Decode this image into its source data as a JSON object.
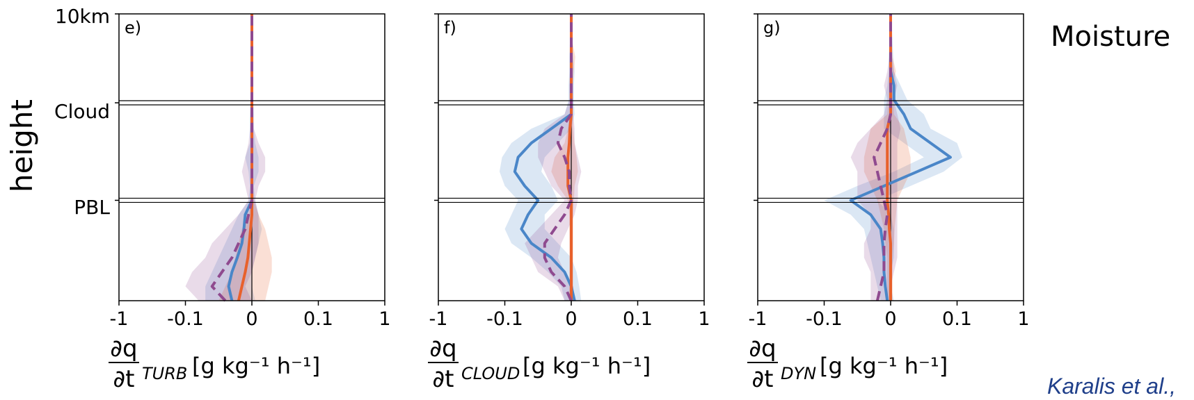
{
  "figure": {
    "side_title": "Moisture",
    "citation": "Karalis et al.,",
    "ylabel": "height",
    "ytick_labels": [
      "10km",
      "Cloud",
      "PBL"
    ]
  },
  "chart_data": [
    {
      "type": "line",
      "panel_label": "e)",
      "xlabel_num": "∂q",
      "xlabel_den": "∂t",
      "xlabel_sub": "TURB",
      "xlabel_units": "[g kg⁻¹ h⁻¹]",
      "xtick_labels": [
        "-1",
        "-0.1",
        "0",
        "0.1",
        "1"
      ],
      "xticks": [
        -1,
        -0.1,
        0,
        0.1,
        1
      ],
      "xscale": "symlog",
      "y_levels": [
        0.0,
        0.05,
        0.1,
        0.15,
        0.2,
        0.25,
        0.3,
        0.35,
        0.4,
        0.45,
        0.5,
        0.55,
        0.6,
        0.65,
        0.7,
        0.75,
        0.8,
        0.85,
        0.9,
        0.95,
        1.0
      ],
      "hlines": [
        0.35,
        0.69
      ],
      "series": [
        {
          "color": "#4a86c8",
          "dash": false,
          "values": [
            -0.03,
            -0.035,
            -0.03,
            -0.022,
            -0.015,
            -0.012,
            -0.01,
            0,
            0,
            0,
            0,
            0,
            0,
            0,
            0,
            0,
            0,
            0,
            0,
            0,
            0
          ],
          "band_lo": [
            -0.07,
            -0.07,
            -0.06,
            -0.05,
            -0.04,
            -0.03,
            -0.02,
            -0.005,
            -0.003,
            -0.005,
            -0.01,
            -0.003,
            -0.003,
            -0.003,
            -0.002,
            -0.002,
            -0.001,
            -0.001,
            -0.001,
            -0.001,
            -0.001
          ],
          "band_hi": [
            0.005,
            0.0,
            0.0,
            0.005,
            0.01,
            0.015,
            0.01,
            0.005,
            0.003,
            0.01,
            0.01,
            0.005,
            0.003,
            0.003,
            0.002,
            0.002,
            0.001,
            0.001,
            0.001,
            0.001,
            0.001
          ]
        },
        {
          "color": "#e8612c",
          "dash": false,
          "values": [
            -0.02,
            -0.015,
            -0.01,
            -0.006,
            -0.004,
            -0.002,
            0,
            0,
            0,
            0,
            0,
            0,
            0,
            0,
            0,
            0,
            0,
            0,
            0,
            0,
            0
          ],
          "band_lo": [
            -0.05,
            -0.04,
            -0.03,
            -0.025,
            -0.02,
            -0.015,
            -0.005,
            -0.002,
            -0.002,
            -0.002,
            -0.002,
            -0.002,
            -0.001,
            -0.001,
            -0.001,
            -0.001,
            -0.001,
            -0.001,
            -0.001,
            -0.001,
            -0.001
          ],
          "band_hi": [
            0.02,
            0.025,
            0.03,
            0.03,
            0.025,
            0.02,
            0.01,
            0.003,
            0.002,
            0.002,
            0.002,
            0.002,
            0.001,
            0.001,
            0.001,
            0.001,
            0.001,
            0.001,
            0.001,
            0.001,
            0.001
          ]
        },
        {
          "color": "#8f4a8f",
          "dash": true,
          "values": [
            -0.04,
            -0.06,
            -0.045,
            -0.03,
            -0.02,
            -0.01,
            -0.005,
            0,
            0,
            0,
            0,
            0,
            0,
            0,
            0,
            0,
            0,
            0,
            0,
            0,
            0
          ],
          "band_lo": [
            -0.08,
            -0.1,
            -0.09,
            -0.07,
            -0.06,
            -0.04,
            -0.02,
            -0.005,
            -0.01,
            -0.015,
            -0.01,
            -0.005,
            -0.003,
            -0.002,
            -0.002,
            -0.002,
            -0.001,
            -0.001,
            -0.001,
            -0.001,
            -0.001
          ],
          "band_hi": [
            0.0,
            -0.01,
            0.0,
            0.005,
            0.01,
            0.01,
            0.01,
            0.005,
            0.01,
            0.02,
            0.02,
            0.01,
            0.003,
            0.002,
            0.002,
            0.002,
            0.001,
            0.001,
            0.001,
            0.001,
            0.001
          ]
        }
      ]
    },
    {
      "type": "line",
      "panel_label": "f)",
      "xlabel_num": "∂q",
      "xlabel_den": "∂t",
      "xlabel_sub": "CLOUD",
      "xlabel_units": "[g kg⁻¹ h⁻¹]",
      "xtick_labels": [
        "-1",
        "-0.1",
        "0",
        "0.1",
        "1"
      ],
      "xticks": [
        -1,
        -0.1,
        0,
        0.1,
        1
      ],
      "xscale": "symlog",
      "y_levels": [
        0.0,
        0.05,
        0.1,
        0.15,
        0.2,
        0.25,
        0.3,
        0.35,
        0.4,
        0.45,
        0.5,
        0.55,
        0.6,
        0.65,
        0.7,
        0.75,
        0.8,
        0.85,
        0.9,
        0.95,
        1.0
      ],
      "hlines": [
        0.35,
        0.69
      ],
      "series": [
        {
          "color": "#4a86c8",
          "dash": false,
          "values": [
            0.005,
            0.0,
            -0.01,
            -0.03,
            -0.06,
            -0.075,
            -0.065,
            -0.05,
            -0.07,
            -0.085,
            -0.08,
            -0.06,
            -0.03,
            0,
            0,
            0,
            0,
            0,
            0,
            0,
            0
          ],
          "band_lo": [
            -0.01,
            -0.015,
            -0.035,
            -0.06,
            -0.09,
            -0.1,
            -0.09,
            -0.08,
            -0.1,
            -0.12,
            -0.11,
            -0.09,
            -0.06,
            -0.01,
            -0.004,
            -0.004,
            -0.003,
            -0.003,
            -0.002,
            -0.002,
            -0.002
          ],
          "band_hi": [
            0.015,
            0.012,
            0.008,
            0.0,
            -0.02,
            -0.04,
            -0.04,
            -0.02,
            -0.03,
            -0.045,
            -0.04,
            -0.02,
            0.0,
            0.005,
            0.004,
            0.004,
            0.005,
            0.003,
            0.002,
            0.002,
            0.002
          ]
        },
        {
          "color": "#e8612c",
          "dash": false,
          "values": [
            0,
            0,
            0,
            0,
            0,
            0,
            0,
            0,
            -0.005,
            -0.005,
            -0.005,
            -0.003,
            -0.002,
            0,
            0,
            0,
            0,
            0,
            0,
            0,
            0
          ],
          "band_lo": [
            -0.003,
            -0.003,
            -0.003,
            -0.003,
            -0.003,
            -0.003,
            -0.003,
            -0.005,
            -0.02,
            -0.03,
            -0.025,
            -0.01,
            -0.005,
            -0.002,
            -0.002,
            -0.002,
            -0.002,
            -0.002,
            -0.001,
            -0.001,
            -0.001
          ],
          "band_hi": [
            0.003,
            0.003,
            0.003,
            0.003,
            0.003,
            0.003,
            0.003,
            0.004,
            0.005,
            0.01,
            0.008,
            0.005,
            0.003,
            0.002,
            0.002,
            0.002,
            0.004,
            0.006,
            0.002,
            0.002,
            0.002
          ]
        },
        {
          "color": "#8f4a8f",
          "dash": true,
          "values": [
            0,
            -0.01,
            -0.03,
            -0.04,
            -0.04,
            -0.025,
            -0.01,
            0,
            -0.003,
            -0.003,
            -0.01,
            -0.02,
            -0.015,
            0,
            0,
            0,
            0,
            0,
            0,
            0,
            0
          ],
          "band_lo": [
            -0.01,
            -0.02,
            -0.05,
            -0.06,
            -0.07,
            -0.05,
            -0.03,
            -0.01,
            -0.03,
            -0.04,
            -0.05,
            -0.05,
            -0.04,
            -0.01,
            -0.003,
            -0.003,
            -0.002,
            -0.002,
            -0.001,
            -0.001,
            -0.001
          ],
          "band_hi": [
            0.005,
            0.003,
            -0.01,
            -0.02,
            -0.015,
            -0.005,
            0.005,
            0.01,
            0.01,
            0.015,
            0.01,
            0.005,
            0.005,
            0.003,
            0.003,
            0.003,
            0.002,
            0.002,
            0.001,
            0.001,
            0.001
          ]
        }
      ]
    },
    {
      "type": "line",
      "panel_label": "g)",
      "xlabel_num": "∂q",
      "xlabel_den": "∂t",
      "xlabel_sub": "DYN",
      "xlabel_units": "[g kg⁻¹ h⁻¹]",
      "xtick_labels": [
        "-1",
        "-0.1",
        "0",
        "0.1",
        "1"
      ],
      "xticks": [
        -1,
        -0.1,
        0,
        0.1,
        1
      ],
      "xscale": "symlog",
      "y_levels": [
        0.0,
        0.05,
        0.1,
        0.15,
        0.2,
        0.25,
        0.3,
        0.35,
        0.4,
        0.45,
        0.5,
        0.55,
        0.6,
        0.65,
        0.7,
        0.75,
        0.8,
        0.85,
        0.9,
        0.95,
        1.0
      ],
      "hlines": [
        0.35,
        0.69
      ],
      "series": [
        {
          "color": "#4a86c8",
          "dash": false,
          "values": [
            -0.005,
            -0.008,
            -0.01,
            -0.01,
            -0.012,
            -0.015,
            -0.03,
            -0.06,
            -0.01,
            0.04,
            0.09,
            0.06,
            0.03,
            0.02,
            0.005,
            0.005,
            0.0,
            0.0,
            0.0,
            0.0,
            0.0
          ],
          "band_lo": [
            -0.015,
            -0.02,
            -0.025,
            -0.03,
            -0.035,
            -0.04,
            -0.06,
            -0.1,
            -0.05,
            0.005,
            0.05,
            0.02,
            -0.01,
            -0.01,
            -0.01,
            -0.005,
            -0.003,
            -0.003,
            -0.002,
            -0.002,
            -0.002
          ],
          "band_hi": [
            0.005,
            0.0,
            0.0,
            0.005,
            0.005,
            0.005,
            0.0,
            -0.02,
            0.03,
            0.08,
            0.12,
            0.1,
            0.06,
            0.05,
            0.025,
            0.015,
            0.005,
            0.004,
            0.003,
            0.002,
            0.002
          ]
        },
        {
          "color": "#e8612c",
          "dash": false,
          "values": [
            0,
            0,
            0,
            0,
            0,
            -0.002,
            -0.003,
            -0.005,
            -0.005,
            -0.005,
            -0.005,
            -0.005,
            -0.005,
            0,
            0,
            0,
            0,
            0,
            0,
            0,
            0
          ],
          "band_lo": [
            -0.005,
            -0.005,
            -0.005,
            -0.005,
            -0.008,
            -0.01,
            -0.015,
            -0.02,
            -0.03,
            -0.04,
            -0.04,
            -0.035,
            -0.03,
            -0.005,
            -0.003,
            -0.003,
            -0.002,
            -0.002,
            -0.002,
            -0.001,
            -0.001
          ],
          "band_hi": [
            0.003,
            0.003,
            0.003,
            0.003,
            0.005,
            0.006,
            0.008,
            0.01,
            0.02,
            0.03,
            0.03,
            0.025,
            0.02,
            0.005,
            0.004,
            0.003,
            0.008,
            0.003,
            0.002,
            0.001,
            0.001
          ]
        },
        {
          "color": "#8f4a8f",
          "dash": true,
          "values": [
            -0.02,
            -0.015,
            -0.01,
            -0.01,
            -0.01,
            -0.008,
            -0.005,
            -0.01,
            -0.015,
            -0.02,
            -0.025,
            -0.015,
            -0.005,
            0,
            0,
            0,
            0,
            0,
            0,
            0,
            0
          ],
          "band_lo": [
            -0.03,
            -0.03,
            -0.03,
            -0.04,
            -0.04,
            -0.03,
            -0.03,
            -0.05,
            -0.05,
            -0.05,
            -0.06,
            -0.05,
            -0.03,
            -0.01,
            -0.005,
            -0.01,
            -0.005,
            -0.002,
            -0.002,
            -0.001,
            -0.001
          ],
          "band_hi": [
            0.0,
            0.0,
            0.005,
            0.01,
            0.01,
            0.01,
            0.01,
            0.01,
            0.01,
            0.01,
            0.01,
            0.01,
            0.015,
            0.01,
            0.005,
            0.01,
            0.005,
            0.002,
            0.002,
            0.001,
            0.001
          ]
        }
      ]
    }
  ]
}
